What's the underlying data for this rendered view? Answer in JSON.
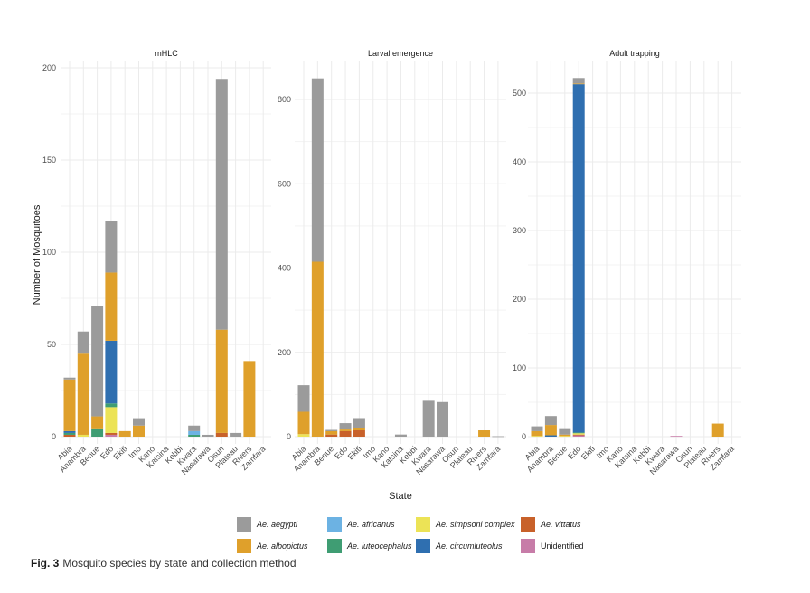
{
  "chart_data": {
    "type": "bar",
    "stacked": true,
    "ylabel": "Number of Mosquitoes",
    "xlabel": "State",
    "categories": [
      "Abia",
      "Anambra",
      "Benue",
      "Edo",
      "Ekiti",
      "Imo",
      "Kano",
      "Katsina",
      "Kebbi",
      "Kwara",
      "Nasarawa",
      "Osun",
      "Plateau",
      "Rivers",
      "Zamfara"
    ],
    "species": [
      {
        "key": "unidentified",
        "name": "Unidentified",
        "color": "#c77ca8",
        "italic": false
      },
      {
        "key": "vittatus",
        "name": "Ae. vittatus",
        "color": "#c8612a",
        "italic": true
      },
      {
        "key": "simpsoni",
        "name": "Ae. simpsoni complex",
        "color": "#ece356",
        "italic": true
      },
      {
        "key": "luteocephalus",
        "name": "Ae. luteocephalus",
        "color": "#3f9d73",
        "italic": true
      },
      {
        "key": "circumluteolus",
        "name": "Ae. circumluteolus",
        "color": "#2f6fb0",
        "italic": true
      },
      {
        "key": "africanus",
        "name": "Ae. africanus",
        "color": "#6cb2e3",
        "italic": true
      },
      {
        "key": "albopictus",
        "name": "Ae. albopictus",
        "color": "#dfa02b",
        "italic": true
      },
      {
        "key": "aegypti",
        "name": "Ae. aegypti",
        "color": "#9b9b9b",
        "italic": true
      }
    ],
    "panels": [
      {
        "title": "mHLC",
        "ylim": [
          0,
          200
        ],
        "yticks": [
          0,
          50,
          100,
          150,
          200
        ],
        "series": {
          "unidentified": [
            0,
            0,
            0,
            1,
            0,
            0,
            0,
            0,
            0,
            0,
            0,
            0,
            0,
            0,
            0
          ],
          "vittatus": [
            1,
            0,
            0,
            1,
            0,
            0,
            0,
            0,
            0,
            0,
            0,
            2,
            0,
            0,
            0
          ],
          "simpsoni": [
            0,
            1,
            0,
            14,
            0,
            0,
            0,
            0,
            0,
            0,
            0,
            0,
            0,
            0,
            0
          ],
          "luteocephalus": [
            1,
            0,
            4,
            2,
            0,
            0,
            0,
            0,
            0,
            1,
            0,
            0,
            0,
            0,
            0
          ],
          "circumluteolus": [
            1,
            0,
            0,
            34,
            0,
            0,
            0,
            0,
            0,
            0,
            0,
            0,
            0,
            0,
            0
          ],
          "africanus": [
            0,
            0,
            0,
            0,
            0,
            0,
            0,
            0,
            0,
            2,
            0,
            0,
            0,
            0,
            0
          ],
          "albopictus": [
            28,
            44,
            7,
            37,
            3,
            6,
            0,
            0,
            0,
            0,
            0,
            56,
            0,
            41,
            0
          ],
          "aegypti": [
            1,
            12,
            60,
            28,
            0,
            4,
            0,
            0,
            0,
            3,
            1,
            136,
            2,
            0,
            0
          ]
        }
      },
      {
        "title": "Larval emergence",
        "ylim": [
          0,
          850
        ],
        "yticks": [
          0,
          200,
          400,
          600,
          800
        ],
        "series": {
          "unidentified": [
            0,
            0,
            0,
            0,
            0,
            0,
            0,
            0,
            0,
            0,
            0,
            0,
            0,
            0,
            0
          ],
          "vittatus": [
            0,
            0,
            5,
            13,
            15,
            0,
            0,
            0,
            0,
            0,
            0,
            0,
            0,
            0,
            0
          ],
          "simpsoni": [
            6,
            0,
            0,
            0,
            0,
            0,
            0,
            0,
            0,
            0,
            0,
            0,
            0,
            0,
            0
          ],
          "luteocephalus": [
            0,
            0,
            0,
            0,
            0,
            0,
            0,
            0,
            0,
            0,
            0,
            0,
            0,
            0,
            0
          ],
          "circumluteolus": [
            0,
            0,
            0,
            0,
            0,
            0,
            0,
            0,
            0,
            0,
            0,
            0,
            0,
            0,
            0
          ],
          "africanus": [
            0,
            0,
            0,
            0,
            0,
            0,
            0,
            0,
            0,
            0,
            0,
            0,
            0,
            0,
            0
          ],
          "albopictus": [
            53,
            415,
            8,
            4,
            6,
            0,
            0,
            0,
            0,
            0,
            0,
            0,
            0,
            15,
            0
          ],
          "aegypti": [
            63,
            435,
            3,
            15,
            23,
            0,
            0,
            5,
            0,
            85,
            82,
            0,
            0,
            0,
            1
          ]
        }
      },
      {
        "title": "Adult trapping",
        "ylim": [
          0,
          530
        ],
        "yticks": [
          0,
          100,
          200,
          300,
          400,
          500
        ],
        "series": {
          "unidentified": [
            0,
            0,
            0,
            2,
            0,
            0,
            0,
            0,
            0,
            0,
            1,
            0,
            0,
            0,
            0
          ],
          "vittatus": [
            0,
            0,
            0,
            1,
            0,
            0,
            0,
            0,
            0,
            0,
            0,
            0,
            0,
            0,
            0
          ],
          "simpsoni": [
            1,
            0,
            1,
            2,
            0,
            0,
            0,
            0,
            0,
            0,
            0,
            0,
            0,
            0,
            0
          ],
          "luteocephalus": [
            0,
            0,
            0,
            1,
            0,
            0,
            0,
            0,
            0,
            0,
            0,
            0,
            0,
            0,
            0
          ],
          "circumluteolus": [
            0,
            2,
            0,
            507,
            0,
            0,
            0,
            0,
            0,
            0,
            0,
            0,
            0,
            0,
            0
          ],
          "africanus": [
            0,
            0,
            0,
            0,
            0,
            0,
            0,
            0,
            0,
            0,
            0,
            0,
            0,
            0,
            0
          ],
          "albopictus": [
            7,
            15,
            2,
            1,
            0,
            0,
            0,
            0,
            0,
            0,
            0,
            0,
            0,
            19,
            0
          ],
          "aegypti": [
            7,
            13,
            8,
            8,
            0,
            0,
            0,
            0,
            0,
            0,
            0,
            0,
            0,
            0,
            0
          ]
        }
      }
    ],
    "legend": {
      "placement": "bottom",
      "order": [
        "aegypti",
        "africanus",
        "simpsoni",
        "vittatus",
        "albopictus",
        "luteocephalus",
        "circumluteolus",
        "unidentified"
      ]
    },
    "grid": true
  },
  "caption": {
    "label": "Fig. 3",
    "text": "Mosquito species by state and collection method"
  }
}
